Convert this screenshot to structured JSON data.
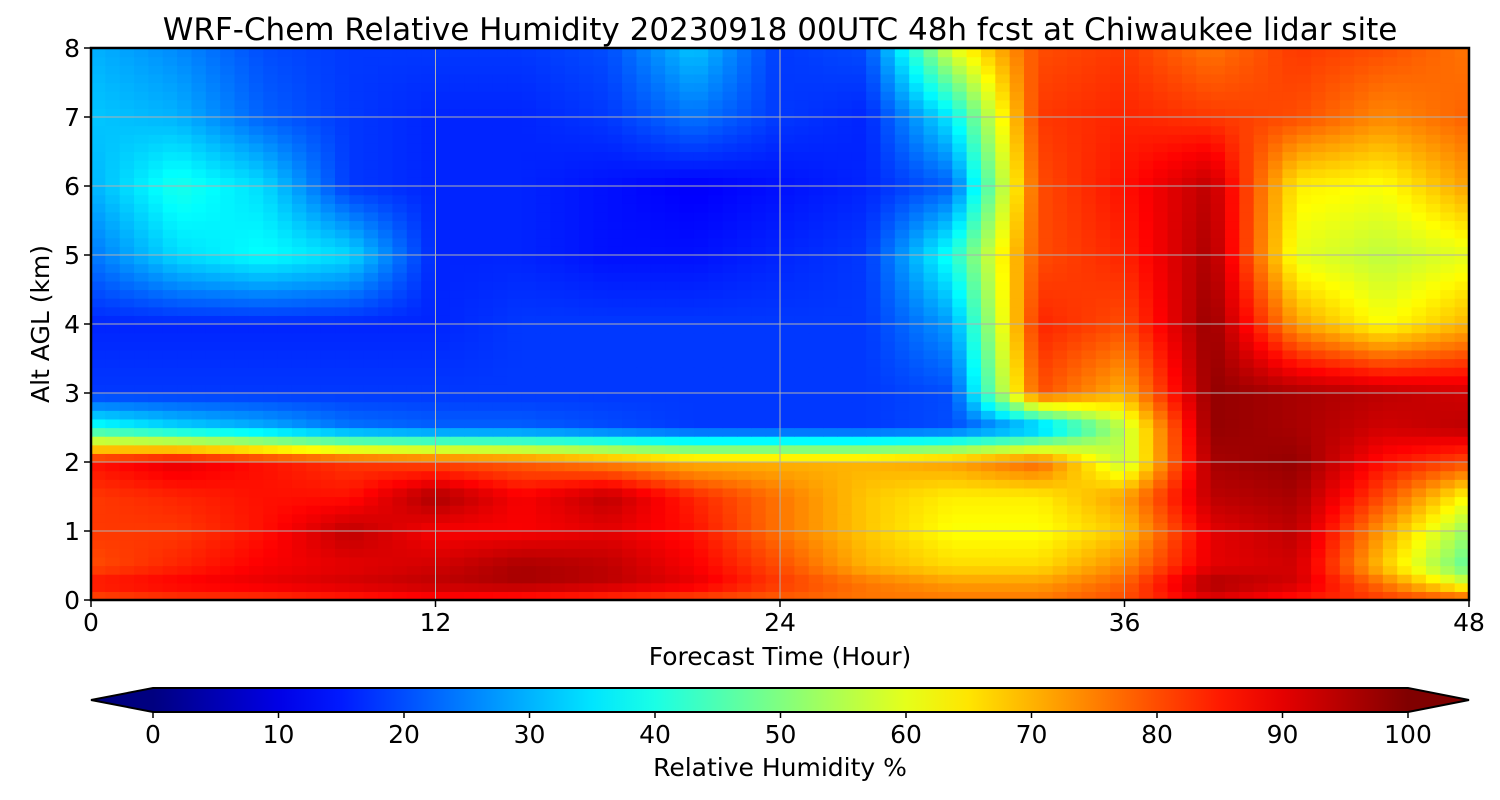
{
  "chart_data": {
    "type": "heatmap",
    "title": "WRF-Chem Relative Humidity 20230918 00UTC 48h fcst at Chiwaukee lidar site",
    "xlabel": "Forecast Time (Hour)",
    "ylabel": "Alt AGL (km)",
    "xlim": [
      0,
      48
    ],
    "ylim": [
      0,
      8
    ],
    "x_ticks": [
      0,
      12,
      24,
      36,
      48
    ],
    "y_ticks": [
      0,
      1,
      2,
      3,
      4,
      5,
      6,
      7,
      8
    ],
    "grid": true,
    "colormap": "jet",
    "colorbar": {
      "label": "Relative Humidity %",
      "orientation": "horizontal",
      "placement": "bottom",
      "range": [
        0,
        100
      ],
      "ticks": [
        0,
        10,
        20,
        30,
        40,
        50,
        60,
        70,
        80,
        90,
        100
      ],
      "extend": "both"
    },
    "x": [
      0,
      3,
      6,
      9,
      12,
      15,
      18,
      21,
      24,
      27,
      30,
      33,
      36,
      39,
      42,
      45,
      48
    ],
    "y": [
      0,
      0.25,
      0.5,
      1,
      1.5,
      2,
      2.5,
      3,
      4,
      5,
      6,
      7,
      8
    ],
    "z": [
      [
        80,
        82,
        82,
        84,
        86,
        84,
        82,
        80,
        78,
        76,
        76,
        76,
        80,
        90,
        85,
        82,
        80
      ],
      [
        86,
        88,
        90,
        92,
        94,
        96,
        94,
        90,
        82,
        76,
        72,
        72,
        78,
        96,
        92,
        76,
        58
      ],
      [
        80,
        84,
        88,
        90,
        92,
        96,
        94,
        88,
        80,
        70,
        66,
        66,
        74,
        90,
        92,
        68,
        46
      ],
      [
        82,
        82,
        86,
        94,
        88,
        88,
        90,
        86,
        76,
        68,
        62,
        62,
        68,
        90,
        94,
        72,
        52
      ],
      [
        82,
        84,
        86,
        86,
        96,
        88,
        94,
        84,
        76,
        68,
        64,
        64,
        72,
        94,
        96,
        80,
        62
      ],
      [
        86,
        90,
        86,
        82,
        80,
        78,
        74,
        70,
        70,
        70,
        72,
        78,
        56,
        96,
        98,
        86,
        80
      ],
      [
        40,
        34,
        30,
        24,
        22,
        22,
        20,
        18,
        18,
        18,
        20,
        28,
        56,
        98,
        96,
        92,
        94
      ],
      [
        18,
        18,
        18,
        18,
        18,
        18,
        18,
        18,
        18,
        18,
        20,
        80,
        70,
        98,
        96,
        94,
        92
      ],
      [
        16,
        16,
        16,
        16,
        16,
        18,
        18,
        18,
        18,
        18,
        28,
        84,
        80,
        98,
        72,
        62,
        70
      ],
      [
        24,
        34,
        38,
        34,
        16,
        16,
        14,
        14,
        16,
        18,
        40,
        80,
        84,
        96,
        60,
        56,
        60
      ],
      [
        30,
        40,
        34,
        18,
        16,
        16,
        14,
        12,
        14,
        16,
        22,
        80,
        86,
        94,
        64,
        62,
        72
      ],
      [
        32,
        30,
        22,
        18,
        16,
        16,
        18,
        24,
        18,
        16,
        36,
        82,
        84,
        82,
        80,
        74,
        78
      ],
      [
        30,
        26,
        20,
        18,
        18,
        18,
        20,
        32,
        18,
        20,
        60,
        80,
        82,
        76,
        82,
        80,
        76
      ]
    ]
  }
}
